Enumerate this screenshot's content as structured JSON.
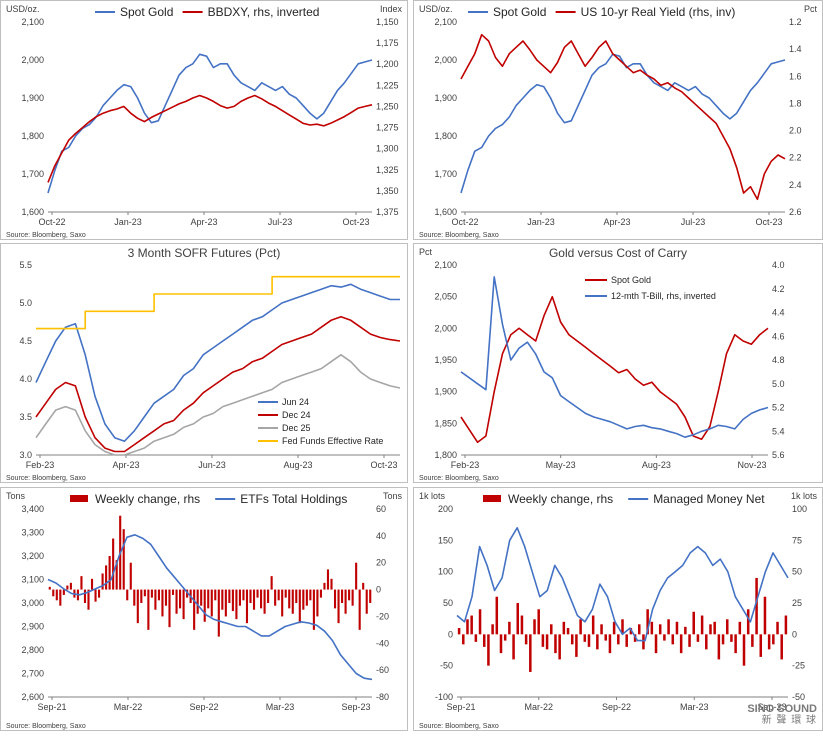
{
  "watermark": {
    "text": "SINO SOUND",
    "sub": "新 聲 環 球"
  },
  "colors": {
    "blue": "#4472C4",
    "red": "#C00000",
    "gray": "#A6A6A6",
    "gold": "#FFC000",
    "axis": "#808080",
    "grid": "#D9D9D9"
  },
  "chart_data": [
    {
      "id": "c1",
      "type": "line",
      "title": "",
      "legend": [
        "Spot Gold",
        "BBDXY, rhs, inverted"
      ],
      "left_unit": "USD/oz.",
      "right_unit": "Index",
      "left_ticks": [
        "2,100",
        "2,000",
        "1,900",
        "1,800",
        "1,700",
        "1,600"
      ],
      "right_ticks": [
        "1,150",
        "1,175",
        "1,200",
        "1,225",
        "1,250",
        "1,275",
        "1,300",
        "1,325",
        "1,350",
        "1,375"
      ],
      "x_ticks": [
        "Oct-22",
        "Jan-23",
        "Apr-23",
        "Jul-23",
        "Oct-23"
      ],
      "ylim": [
        1600,
        2100
      ],
      "y2lim": [
        1375,
        1150
      ],
      "y2_inverted": true,
      "source": "Source: Bloomberg, Saxo",
      "series": [
        {
          "name": "Spot Gold",
          "color": "blue",
          "axis": "left",
          "values": [
            1650,
            1710,
            1760,
            1770,
            1800,
            1820,
            1830,
            1850,
            1880,
            1900,
            1920,
            1935,
            1930,
            1900,
            1860,
            1835,
            1840,
            1880,
            1920,
            1960,
            1980,
            1990,
            2015,
            2010,
            1980,
            1990,
            1990,
            1960,
            1940,
            1930,
            1920,
            1940,
            1930,
            1920,
            1930,
            1910,
            1900,
            1880,
            1860,
            1845,
            1860,
            1890,
            1920,
            1940,
            1965,
            1990,
            1995,
            2000
          ]
        },
        {
          "name": "BBDXY, rhs, inverted",
          "color": "red",
          "axis": "right",
          "values": [
            1340,
            1320,
            1305,
            1290,
            1282,
            1275,
            1268,
            1262,
            1258,
            1255,
            1253,
            1250,
            1258,
            1264,
            1268,
            1263,
            1259,
            1255,
            1251,
            1247,
            1244,
            1240,
            1237,
            1240,
            1244,
            1249,
            1252,
            1250,
            1244,
            1240,
            1237,
            1241,
            1246,
            1250,
            1255,
            1260,
            1265,
            1270,
            1272,
            1271,
            1273,
            1270,
            1266,
            1262,
            1257,
            1252,
            1250,
            1248
          ]
        }
      ]
    },
    {
      "id": "c2",
      "type": "line",
      "title": "",
      "legend": [
        "Spot Gold",
        "US 10-yr Real Yield (rhs, inv)"
      ],
      "left_unit": "USD/oz.",
      "right_unit": "Pct",
      "left_ticks": [
        "2,100",
        "2,000",
        "1,900",
        "1,800",
        "1,700",
        "1,600"
      ],
      "right_ticks": [
        "1.2",
        "1.4",
        "1.6",
        "1.8",
        "2.0",
        "2.2",
        "2.4",
        "2.6"
      ],
      "x_ticks": [
        "Oct-22",
        "Jan-23",
        "Apr-23",
        "Jul-23",
        "Oct-23"
      ],
      "ylim": [
        1600,
        2100
      ],
      "y2lim": [
        2.6,
        1.1
      ],
      "y2_inverted": true,
      "source": "Source: Bloomberg, Saxo",
      "series": [
        {
          "name": "Spot Gold",
          "color": "blue",
          "axis": "left",
          "values": [
            1650,
            1710,
            1760,
            1770,
            1800,
            1820,
            1830,
            1850,
            1880,
            1900,
            1920,
            1935,
            1930,
            1900,
            1860,
            1835,
            1840,
            1880,
            1920,
            1960,
            1980,
            1990,
            2015,
            2010,
            1980,
            1990,
            1990,
            1960,
            1940,
            1930,
            1920,
            1940,
            1930,
            1920,
            1930,
            1910,
            1900,
            1880,
            1860,
            1845,
            1860,
            1890,
            1920,
            1940,
            1965,
            1990,
            1995,
            2000
          ]
        },
        {
          "name": "US 10-yr Real Yield (rhs, inv)",
          "color": "red",
          "axis": "right",
          "values": [
            1.55,
            1.45,
            1.35,
            1.2,
            1.25,
            1.38,
            1.45,
            1.35,
            1.3,
            1.25,
            1.32,
            1.4,
            1.45,
            1.5,
            1.42,
            1.3,
            1.25,
            1.35,
            1.45,
            1.38,
            1.3,
            1.25,
            1.35,
            1.4,
            1.45,
            1.5,
            1.48,
            1.52,
            1.55,
            1.6,
            1.58,
            1.62,
            1.65,
            1.7,
            1.75,
            1.8,
            1.85,
            1.9,
            2.0,
            2.1,
            2.25,
            2.45,
            2.4,
            2.5,
            2.3,
            2.2,
            2.15,
            2.18
          ]
        }
      ]
    },
    {
      "id": "c3",
      "type": "line",
      "title": "3 Month SOFR Futures (Pct)",
      "left_ticks": [
        "5.5",
        "5.0",
        "4.5",
        "4.0",
        "3.5",
        "3.0"
      ],
      "x_ticks": [
        "Feb-23",
        "Apr-23",
        "Jun-23",
        "Aug-23",
        "Oct-23"
      ],
      "ylim": [
        2.75,
        5.5
      ],
      "source": "Source: Bloomberg, Saxo",
      "series": [
        {
          "name": "Jun 24",
          "color": "blue",
          "values": [
            3.8,
            4.1,
            4.4,
            4.6,
            4.65,
            4.2,
            3.6,
            3.2,
            3.0,
            2.95,
            3.1,
            3.3,
            3.5,
            3.6,
            3.7,
            3.9,
            4.0,
            4.2,
            4.3,
            4.4,
            4.5,
            4.6,
            4.7,
            4.75,
            4.85,
            4.95,
            5.0,
            5.05,
            5.1,
            5.15,
            5.2,
            5.18,
            5.22,
            5.15,
            5.1,
            5.05,
            5.0,
            5.0
          ]
        },
        {
          "name": "Dec 24",
          "color": "red",
          "values": [
            3.3,
            3.5,
            3.7,
            3.8,
            3.75,
            3.3,
            3.0,
            2.85,
            2.8,
            2.8,
            2.9,
            3.0,
            3.1,
            3.2,
            3.25,
            3.4,
            3.5,
            3.65,
            3.75,
            3.85,
            3.95,
            4.0,
            4.1,
            4.15,
            4.25,
            4.35,
            4.4,
            4.45,
            4.5,
            4.6,
            4.7,
            4.75,
            4.7,
            4.6,
            4.5,
            4.45,
            4.42,
            4.4
          ]
        },
        {
          "name": "Dec 25",
          "color": "gray",
          "values": [
            3.0,
            3.2,
            3.4,
            3.45,
            3.4,
            3.1,
            2.9,
            2.8,
            2.75,
            2.75,
            2.8,
            2.85,
            2.95,
            3.0,
            3.05,
            3.15,
            3.2,
            3.3,
            3.35,
            3.45,
            3.5,
            3.55,
            3.6,
            3.65,
            3.7,
            3.8,
            3.85,
            3.9,
            3.95,
            4.0,
            4.1,
            4.2,
            4.1,
            3.95,
            3.85,
            3.8,
            3.75,
            3.72
          ]
        },
        {
          "name": "Fed Funds Effective Rate",
          "color": "gold",
          "step": true,
          "values": [
            4.58,
            4.58,
            4.58,
            4.58,
            4.58,
            4.83,
            4.83,
            4.83,
            4.83,
            4.83,
            4.83,
            4.83,
            5.08,
            5.08,
            5.08,
            5.08,
            5.08,
            5.08,
            5.08,
            5.08,
            5.08,
            5.08,
            5.08,
            5.08,
            5.33,
            5.33,
            5.33,
            5.33,
            5.33,
            5.33,
            5.33,
            5.33,
            5.33,
            5.33,
            5.33,
            5.33,
            5.33,
            5.33
          ]
        }
      ]
    },
    {
      "id": "c4",
      "type": "line",
      "title": "Gold versus Cost of Carry",
      "left_unit": "Pct",
      "left_ticks": [
        "2,100",
        "2,050",
        "2,000",
        "1,950",
        "1,900",
        "1,850",
        "1,800"
      ],
      "right_ticks": [
        "4.0",
        "4.2",
        "4.4",
        "4.6",
        "4.8",
        "5.0",
        "5.2",
        "5.4",
        "5.6"
      ],
      "x_ticks": [
        "Feb-23",
        "May-23",
        "Aug-23",
        "Nov-23"
      ],
      "ylim": [
        1800,
        2100
      ],
      "y2lim": [
        5.6,
        4.0
      ],
      "y2_inverted": true,
      "source": "Source: Bloomberg, Saxo",
      "series": [
        {
          "name": "Spot Gold",
          "color": "red",
          "axis": "left",
          "values": [
            1860,
            1840,
            1820,
            1830,
            1900,
            1960,
            1990,
            2000,
            1990,
            1980,
            2020,
            2050,
            2010,
            1990,
            1980,
            1970,
            1960,
            1950,
            1940,
            1930,
            1935,
            1920,
            1910,
            1915,
            1900,
            1890,
            1880,
            1860,
            1830,
            1825,
            1845,
            1900,
            1960,
            1990,
            1980,
            1975,
            1990,
            2000
          ]
        },
        {
          "name": "12-mth T-Bill, rhs, inverted",
          "color": "blue",
          "axis": "right",
          "values": [
            4.9,
            4.95,
            5.0,
            5.05,
            4.1,
            4.5,
            4.8,
            4.7,
            4.65,
            4.75,
            4.9,
            4.95,
            5.1,
            5.15,
            5.2,
            5.25,
            5.28,
            5.3,
            5.32,
            5.35,
            5.38,
            5.36,
            5.35,
            5.37,
            5.38,
            5.4,
            5.42,
            5.45,
            5.43,
            5.4,
            5.38,
            5.35,
            5.36,
            5.38,
            5.3,
            5.25,
            5.22,
            5.2
          ]
        }
      ]
    },
    {
      "id": "c5",
      "type": "bar",
      "title": "",
      "legend": [
        "Weekly change, rhs",
        "ETFs Total Holdings"
      ],
      "left_unit": "Tons",
      "right_unit": "Tons",
      "left_ticks": [
        "3,400",
        "3,300",
        "3,200",
        "3,100",
        "3,000",
        "2,900",
        "2,800",
        "2,700",
        "2,600"
      ],
      "right_ticks": [
        "60",
        "40",
        "20",
        "0",
        "-20",
        "-40",
        "-60",
        "-80"
      ],
      "x_ticks": [
        "Sep-21",
        "Mar-22",
        "Sep-22",
        "Mar-23",
        "Sep-23"
      ],
      "ylim": [
        2600,
        3400
      ],
      "y2lim": [
        -80,
        60
      ],
      "source": "Source: Bloomberg, Saxo",
      "series": [
        {
          "name": "ETFs Total Holdings",
          "color": "blue",
          "axis": "left",
          "type": "line",
          "values": [
            3100,
            3085,
            3060,
            3040,
            3035,
            3045,
            3060,
            3075,
            3100,
            3200,
            3280,
            3290,
            3275,
            3250,
            3200,
            3150,
            3110,
            3070,
            3030,
            2990,
            2950,
            2930,
            2920,
            2910,
            2900,
            2900,
            2880,
            2860,
            2860,
            2880,
            2900,
            2910,
            2920,
            2915,
            2905,
            2880,
            2840,
            2780,
            2740,
            2700,
            2680,
            2675
          ]
        },
        {
          "name": "Weekly change, rhs",
          "color": "red",
          "axis": "right",
          "type": "bar",
          "values": [
            2,
            -5,
            -8,
            -12,
            -4,
            3,
            5,
            -6,
            -8,
            10,
            -10,
            -15,
            8,
            -9,
            -6,
            12,
            18,
            25,
            38,
            22,
            55,
            45,
            -8,
            20,
            -12,
            -25,
            -10,
            -5,
            -30,
            -6,
            -15,
            -8,
            -20,
            -12,
            -28,
            -4,
            -18,
            -14,
            -22,
            -6,
            -10,
            -30,
            -18,
            -12,
            -24,
            -14,
            -20,
            -8,
            -35,
            -15,
            -20,
            -10,
            -16,
            -22,
            -12,
            -8,
            -25,
            -10,
            -15,
            -6,
            -14,
            -18,
            -10,
            10,
            -12,
            -8,
            -20,
            -6,
            -14,
            -18,
            -10,
            -25,
            -15,
            -12,
            -8,
            -30,
            -20,
            -6,
            5,
            15,
            8,
            -14,
            -25,
            -10,
            -18,
            -8,
            -12,
            20,
            -30,
            5,
            -18,
            -10
          ]
        }
      ]
    },
    {
      "id": "c6",
      "type": "bar",
      "title": "",
      "legend": [
        "Weekly change, rhs",
        "Managed Money Net"
      ],
      "left_unit": "1k lots",
      "right_unit": "1k lots",
      "left_ticks": [
        "200",
        "150",
        "100",
        "50",
        "0",
        "-50",
        "-100"
      ],
      "right_ticks": [
        "100",
        "75",
        "50",
        "25",
        "0",
        "-25",
        "-50"
      ],
      "x_ticks": [
        "Sep-21",
        "Mar-22",
        "Sep-22",
        "Mar-23",
        "Sep-23"
      ],
      "ylim": [
        -100,
        200
      ],
      "y2lim": [
        -50,
        100
      ],
      "source": "Source: Bloomberg, Saxo",
      "series": [
        {
          "name": "Managed Money Net",
          "color": "blue",
          "axis": "left",
          "type": "line",
          "values": [
            30,
            20,
            60,
            140,
            110,
            70,
            90,
            150,
            170,
            140,
            100,
            60,
            70,
            110,
            90,
            60,
            30,
            20,
            40,
            80,
            60,
            20,
            0,
            10,
            -10,
            -10,
            40,
            70,
            90,
            100,
            110,
            130,
            140,
            130,
            110,
            120,
            100,
            60,
            40,
            20,
            60,
            100,
            130,
            110,
            90
          ]
        },
        {
          "name": "Weekly change, rhs",
          "color": "red",
          "axis": "right",
          "type": "bar",
          "values": [
            5,
            -8,
            12,
            15,
            -6,
            20,
            -10,
            -25,
            8,
            30,
            -15,
            -5,
            10,
            -20,
            25,
            15,
            -8,
            -30,
            12,
            20,
            -10,
            -12,
            8,
            -15,
            -20,
            10,
            5,
            -8,
            -18,
            12,
            -6,
            -10,
            15,
            -12,
            8,
            -5,
            -15,
            10,
            -8,
            12,
            -10,
            5,
            -6,
            8,
            -12,
            20,
            10,
            -15,
            8,
            -5,
            12,
            -8,
            10,
            -15,
            6,
            -10,
            18,
            -6,
            15,
            -12,
            8,
            10,
            -20,
            -8,
            12,
            -6,
            -15,
            10,
            -25,
            20,
            -10,
            45,
            -18,
            30,
            -12,
            -8,
            10,
            -20,
            15
          ]
        }
      ]
    }
  ]
}
